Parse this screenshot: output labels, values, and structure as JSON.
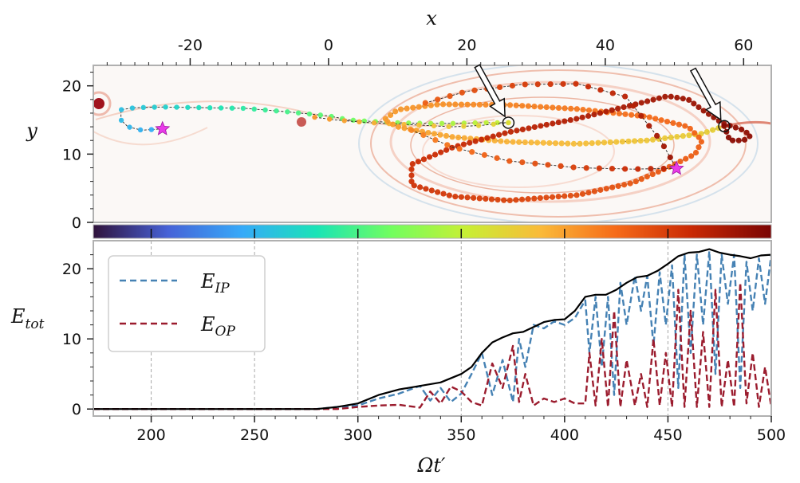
{
  "chart_data": [
    {
      "type": "scatter",
      "title": "",
      "xlabel": "x",
      "ylabel": "y",
      "x_axis_position": "top",
      "xlim": [
        -34,
        64
      ],
      "ylim": [
        0,
        23
      ],
      "xticks": [
        -20,
        0,
        20,
        40,
        60
      ],
      "yticks": [
        0,
        10,
        20
      ],
      "background": "vorticity field (red/blue contours)",
      "colorbar": {
        "orientation": "horizontal",
        "colormap": "turbo",
        "colors": [
          "#30123b",
          "#4662d7",
          "#36aaf9",
          "#1ae4b6",
          "#72fe5e",
          "#c8ef34",
          "#faba39",
          "#f66b19",
          "#ca2a04",
          "#7a0403"
        ]
      },
      "markers": [
        {
          "icon": "star",
          "x": -24,
          "y": 13.7,
          "color": "#e83be8"
        },
        {
          "icon": "star",
          "x": 50.3,
          "y": 7.9,
          "color": "#e83be8"
        }
      ],
      "arrows": [
        {
          "tip_x": 26.0,
          "tip_y": 14.6
        },
        {
          "tip_x": 57.2,
          "tip_y": 14.1
        }
      ],
      "series": [
        {
          "x": [
            -24,
            -27,
            -29,
            -30,
            -30,
            -28,
            -24,
            -18,
            -12,
            -6,
            0,
            3,
            6,
            10,
            14,
            18,
            22,
            26.0
          ],
          "y": [
            13.7,
            13.5,
            14.0,
            15.0,
            16.5,
            16.8,
            16.9,
            16.8,
            16.7,
            16.2,
            15.6,
            15.0,
            14.8,
            14.6,
            14.5,
            14.5,
            14.6,
            14.6
          ]
        },
        {
          "x": [
            26.0,
            22,
            18,
            12,
            6,
            1,
            -2
          ],
          "y": [
            14.6,
            14.2,
            14.0,
            14.3,
            14.6,
            15.0,
            15.4
          ]
        },
        {
          "x": [
            57.2,
            54,
            46,
            36,
            26,
            18,
            14,
            10,
            8,
            10,
            16,
            26,
            36,
            46,
            52,
            54,
            53,
            49,
            44,
            36,
            26,
            18,
            12,
            12,
            18,
            26,
            36,
            44,
            49,
            52,
            54,
            57,
            60,
            61,
            60,
            58,
            57.2
          ],
          "y": [
            14.1,
            13.0,
            12.0,
            11.5,
            11.8,
            12.5,
            13.2,
            14.0,
            15.0,
            16.5,
            17.3,
            17.2,
            16.6,
            15.5,
            14.0,
            12.0,
            10.0,
            8.0,
            5.8,
            4.0,
            3.2,
            3.8,
            5.5,
            8.5,
            11.0,
            13.2,
            15.2,
            17.2,
            18.5,
            18.0,
            16.5,
            14.5,
            13.5,
            12.7,
            12.0,
            12.0,
            14.1
          ]
        },
        {
          "x": [
            12,
            18,
            26,
            36,
            44,
            49,
            50.3
          ],
          "y": [
            13.5,
            11.0,
            9.0,
            8.0,
            7.8,
            7.9,
            7.9
          ]
        },
        {
          "x": [
            14,
            20,
            28,
            36,
            43,
            48,
            50.3
          ],
          "y": [
            17.5,
            19.2,
            20.2,
            20.3,
            18.4,
            12.0,
            7.9
          ]
        }
      ]
    },
    {
      "type": "line",
      "title": "",
      "xlabel": "Ωt′",
      "ylabel": "E_tot",
      "xlim": [
        172,
        500
      ],
      "ylim": [
        -1,
        24
      ],
      "xticks": [
        200,
        250,
        300,
        350,
        400,
        450,
        500
      ],
      "yticks": [
        0,
        10,
        20
      ],
      "grid": "vertical dashed",
      "legend": {
        "position": "top-left"
      },
      "series": [
        {
          "name": "E_tot",
          "style": "solid",
          "color": "#000000",
          "x": [
            172,
            280,
            290,
            300,
            310,
            320,
            330,
            340,
            350,
            355,
            360,
            365,
            370,
            375,
            380,
            385,
            390,
            395,
            400,
            405,
            410,
            415,
            420,
            425,
            430,
            435,
            440,
            445,
            450,
            455,
            460,
            465,
            470,
            475,
            480,
            485,
            490,
            495,
            500
          ],
          "y": [
            0,
            0,
            0.3,
            0.8,
            2.0,
            2.8,
            3.3,
            3.8,
            5.0,
            6.0,
            8.0,
            9.5,
            10.2,
            10.8,
            11.0,
            11.7,
            12.4,
            12.7,
            12.8,
            14.0,
            16.0,
            16.3,
            16.3,
            17.0,
            18.0,
            18.8,
            19.0,
            19.7,
            20.7,
            21.8,
            22.3,
            22.4,
            22.8,
            22.3,
            22.0,
            21.8,
            21.5,
            21.9,
            22.0
          ]
        },
        {
          "name": "E_IP",
          "style": "dashed",
          "color": "#4682b4",
          "x": [
            172,
            280,
            290,
            300,
            310,
            320,
            330,
            335,
            340,
            345,
            350,
            355,
            360,
            365,
            370,
            375,
            378,
            381,
            385,
            390,
            395,
            400,
            405,
            410,
            412,
            415,
            418,
            421,
            424,
            427,
            430,
            434,
            437,
            440,
            443,
            446,
            449,
            452,
            455,
            458,
            461,
            464,
            467,
            470,
            473,
            476,
            479,
            482,
            485,
            488,
            491,
            494,
            497,
            500
          ],
          "y": [
            0,
            0,
            0.3,
            0.5,
            1.5,
            2.2,
            3.3,
            1.2,
            3.0,
            1.0,
            2.2,
            5.0,
            8.0,
            2.0,
            7.0,
            1.0,
            10.0,
            6.0,
            12.0,
            11.5,
            12.5,
            12.0,
            13.0,
            15.5,
            8.0,
            16.0,
            6.0,
            16.0,
            2.0,
            18.0,
            12.0,
            19.0,
            14.0,
            19.0,
            9.0,
            19.5,
            12.0,
            20.5,
            3.0,
            22.0,
            8.0,
            22.0,
            12.0,
            22.5,
            5.0,
            22.0,
            15.0,
            22.0,
            3.0,
            21.0,
            14.0,
            21.5,
            15.0,
            22.0
          ]
        },
        {
          "name": "E_OP",
          "style": "dashed",
          "color": "#9b1c2e",
          "x": [
            172,
            280,
            290,
            300,
            310,
            320,
            330,
            335,
            340,
            345,
            350,
            355,
            360,
            365,
            370,
            375,
            378,
            381,
            385,
            390,
            395,
            400,
            405,
            410,
            412,
            415,
            418,
            421,
            424,
            427,
            430,
            434,
            437,
            440,
            443,
            446,
            449,
            452,
            455,
            458,
            461,
            464,
            467,
            470,
            473,
            476,
            479,
            482,
            485,
            488,
            491,
            494,
            497,
            500
          ],
          "y": [
            0,
            0,
            0,
            0.3,
            0.5,
            0.6,
            0.2,
            2.5,
            0.8,
            3.2,
            2.5,
            1.0,
            0.5,
            6.5,
            3.0,
            9.0,
            1.0,
            5.0,
            0.5,
            1.5,
            1.0,
            1.5,
            0.8,
            0.8,
            8.0,
            0.5,
            10.0,
            0.3,
            14.0,
            0.3,
            7.0,
            0.5,
            5.0,
            0.3,
            10.0,
            0.5,
            8.0,
            0.3,
            17.0,
            0.3,
            14.0,
            0.3,
            11.0,
            0.3,
            17.0,
            0.3,
            7.0,
            0.3,
            18.0,
            0.8,
            8.0,
            0.3,
            6.0,
            0.3
          ]
        }
      ]
    }
  ],
  "legend_labels": {
    "ip_main": "E",
    "ip_sub": "IP",
    "op_main": "E",
    "op_sub": "OP"
  },
  "axis_labels": {
    "top_x": "x",
    "top_y": "y",
    "bottom_x": "Ωt′",
    "bottom_y_main": "E",
    "bottom_y_sub": "tot"
  }
}
